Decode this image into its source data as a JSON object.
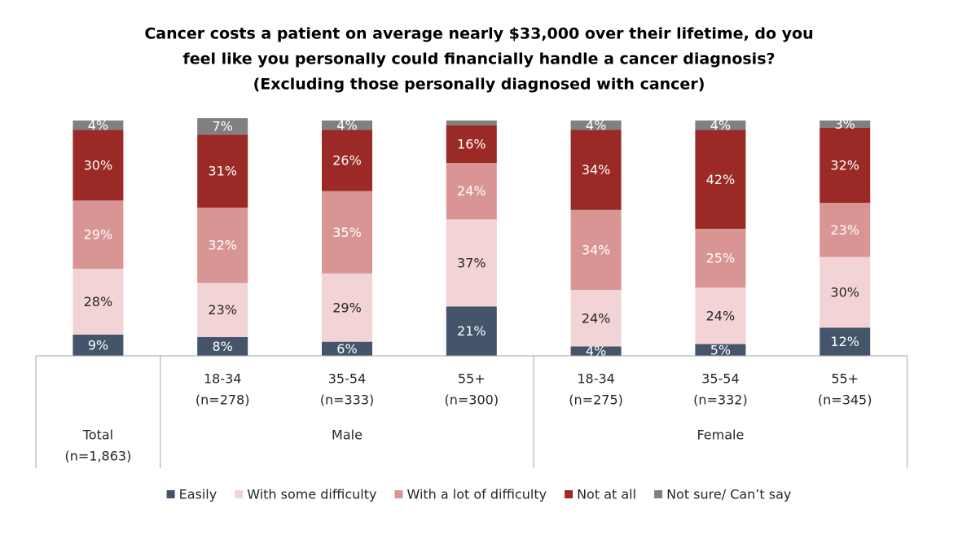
{
  "chart_data": {
    "type": "stacked_bar",
    "title": [
      "Cancer costs a patient on average nearly $33,000 over their lifetime, do you",
      "feel like you personally could financially handle a cancer diagnosis?",
      "(Excluding those personally diagnosed with cancer)"
    ],
    "categories": [
      [
        "Total",
        "(n=1,863)"
      ],
      [
        "18-34",
        "(n=278)"
      ],
      [
        "35-54",
        "(n=333)"
      ],
      [
        "55+",
        "(n=300)"
      ],
      [
        "18-34",
        "(n=275)"
      ],
      [
        "35-54",
        "(n=332)"
      ],
      [
        "55+",
        "(n=345)"
      ]
    ],
    "groups": [
      null,
      "Male",
      "Male",
      "Male",
      "Female",
      "Female",
      "Female"
    ],
    "ylim": [
      0,
      100
    ],
    "series": [
      {
        "name": "Easily",
        "color": "#44546a",
        "values": [
          9,
          8,
          6,
          21,
          4,
          5,
          12
        ],
        "value_labels": [
          "9%",
          "8%",
          "6%",
          "21%",
          "4%",
          "5%",
          "12%"
        ]
      },
      {
        "name": "With some difficulty",
        "color": "#f2d4d6",
        "values": [
          28,
          23,
          29,
          37,
          24,
          24,
          30
        ],
        "value_labels": [
          "28%",
          "23%",
          "29%",
          "37%",
          "24%",
          "24%",
          "30%"
        ]
      },
      {
        "name": "With a lot of difficulty",
        "color": "#d99594",
        "values": [
          29,
          32,
          35,
          24,
          34,
          25,
          23
        ],
        "value_labels": [
          "29%",
          "32%",
          "35%",
          "24%",
          "34%",
          "25%",
          "23%"
        ]
      },
      {
        "name": "Not at all",
        "color": "#9b2a27",
        "values": [
          30,
          31,
          26,
          16,
          34,
          42,
          32
        ],
        "value_labels": [
          "30%",
          "31%",
          "26%",
          "16%",
          "34%",
          "42%",
          "32%"
        ]
      },
      {
        "name": "Not sure/ Can’t say",
        "color": "#808080",
        "values": [
          4,
          7,
          4,
          2,
          4,
          4,
          3
        ],
        "value_labels": [
          "4%",
          "7%",
          "4%",
          null,
          "4%",
          "4%",
          "3%"
        ]
      }
    ]
  }
}
